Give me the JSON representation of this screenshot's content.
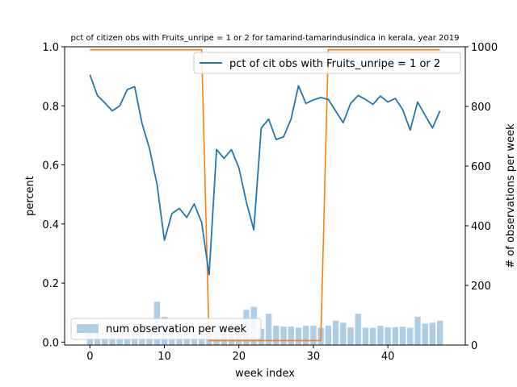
{
  "chart_data": {
    "type": "bar+line",
    "title": "pct of citizen obs with Fruits_unripe = 1 or 2 for tamarind-tamarindusindica in kerala, year 2019",
    "xlabel": "week index",
    "ylabel_left": "percent",
    "ylabel_right": "# of observations per week",
    "xlim": [
      -3.4,
      50.4
    ],
    "ylim_left": [
      -0.01,
      1.0
    ],
    "ylim_right": [
      0,
      1000
    ],
    "x_ticks": [
      0,
      10,
      20,
      30,
      40
    ],
    "y_ticks_left": [
      0.0,
      0.2,
      0.4,
      0.6,
      0.8,
      1.0
    ],
    "y_ticks_right": [
      0,
      200,
      400,
      600,
      800,
      1000
    ],
    "grid": false,
    "legend_line": {
      "label": "pct of cit obs with Fruits_unripe = 1 or 2",
      "placement": "upper-right"
    },
    "legend_bar": {
      "label": "num observation per week",
      "placement": "lower-left"
    },
    "colors": {
      "pct_line": "#1f77b4",
      "step_line": "#ff7f0e",
      "bars": "#aecde6"
    },
    "pct_line": {
      "x": [
        0,
        1,
        2,
        3,
        4,
        5,
        6,
        7,
        8,
        9,
        10,
        11,
        12,
        13,
        14,
        15,
        16,
        17,
        18,
        19,
        20,
        21,
        22,
        23,
        24,
        25,
        26,
        27,
        28,
        29,
        30,
        31,
        32,
        33,
        34,
        35,
        36,
        37,
        38,
        39,
        40,
        41,
        42,
        43,
        44,
        45,
        46,
        47
      ],
      "y": [
        0.905,
        0.835,
        0.81,
        0.783,
        0.8,
        0.855,
        0.865,
        0.74,
        0.655,
        0.535,
        0.345,
        0.435,
        0.453,
        0.422,
        0.468,
        0.405,
        0.228,
        0.652,
        0.622,
        0.652,
        0.59,
        0.475,
        0.38,
        0.725,
        0.755,
        0.686,
        0.695,
        0.755,
        0.868,
        0.808,
        0.82,
        0.828,
        0.822,
        0.782,
        0.743,
        0.808,
        0.835,
        0.822,
        0.805,
        0.833,
        0.813,
        0.825,
        0.787,
        0.718,
        0.813,
        0.768,
        0.725,
        0.783
      ]
    },
    "step_line": {
      "x": [
        0,
        15,
        16,
        31,
        32,
        47
      ],
      "y": [
        990,
        990,
        15,
        15,
        990,
        990
      ]
    },
    "bars": {
      "x": [
        0,
        1,
        2,
        3,
        4,
        5,
        6,
        7,
        8,
        9,
        10,
        11,
        12,
        13,
        14,
        15,
        16,
        17,
        18,
        19,
        20,
        21,
        22,
        23,
        24,
        25,
        26,
        27,
        28,
        29,
        30,
        31,
        32,
        33,
        34,
        35,
        36,
        37,
        38,
        39,
        40,
        41,
        42,
        43,
        44,
        45,
        46,
        47
      ],
      "values": [
        45,
        40,
        42,
        38,
        40,
        42,
        44,
        40,
        42,
        145,
        95,
        55,
        45,
        50,
        48,
        45,
        40,
        50,
        45,
        48,
        55,
        118,
        128,
        55,
        105,
        65,
        62,
        62,
        58,
        65,
        65,
        58,
        65,
        82,
        75,
        60,
        105,
        58,
        58,
        65,
        60,
        60,
        62,
        58,
        95,
        72,
        75,
        82
      ]
    }
  }
}
